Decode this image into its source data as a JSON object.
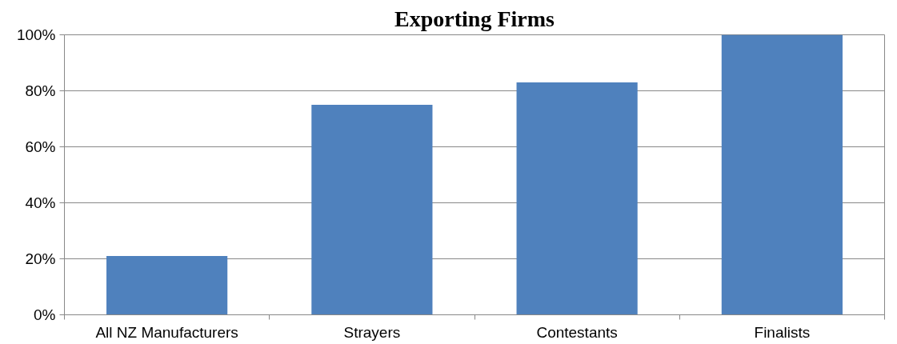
{
  "chart_data": {
    "type": "bar",
    "title": "Exporting Firms",
    "categories": [
      "All NZ Manufacturers",
      "Strayers",
      "Contestants",
      "Finalists"
    ],
    "values": [
      21,
      75,
      83,
      100
    ],
    "color": "#4f81bd",
    "ylim": [
      0,
      100
    ],
    "yticks": [
      {
        "value": 0,
        "label": "0%"
      },
      {
        "value": 20,
        "label": "20%"
      },
      {
        "value": 40,
        "label": "40%"
      },
      {
        "value": 60,
        "label": "60%"
      },
      {
        "value": 80,
        "label": "80%"
      },
      {
        "value": 100,
        "label": "100%"
      }
    ],
    "grid": "y"
  }
}
